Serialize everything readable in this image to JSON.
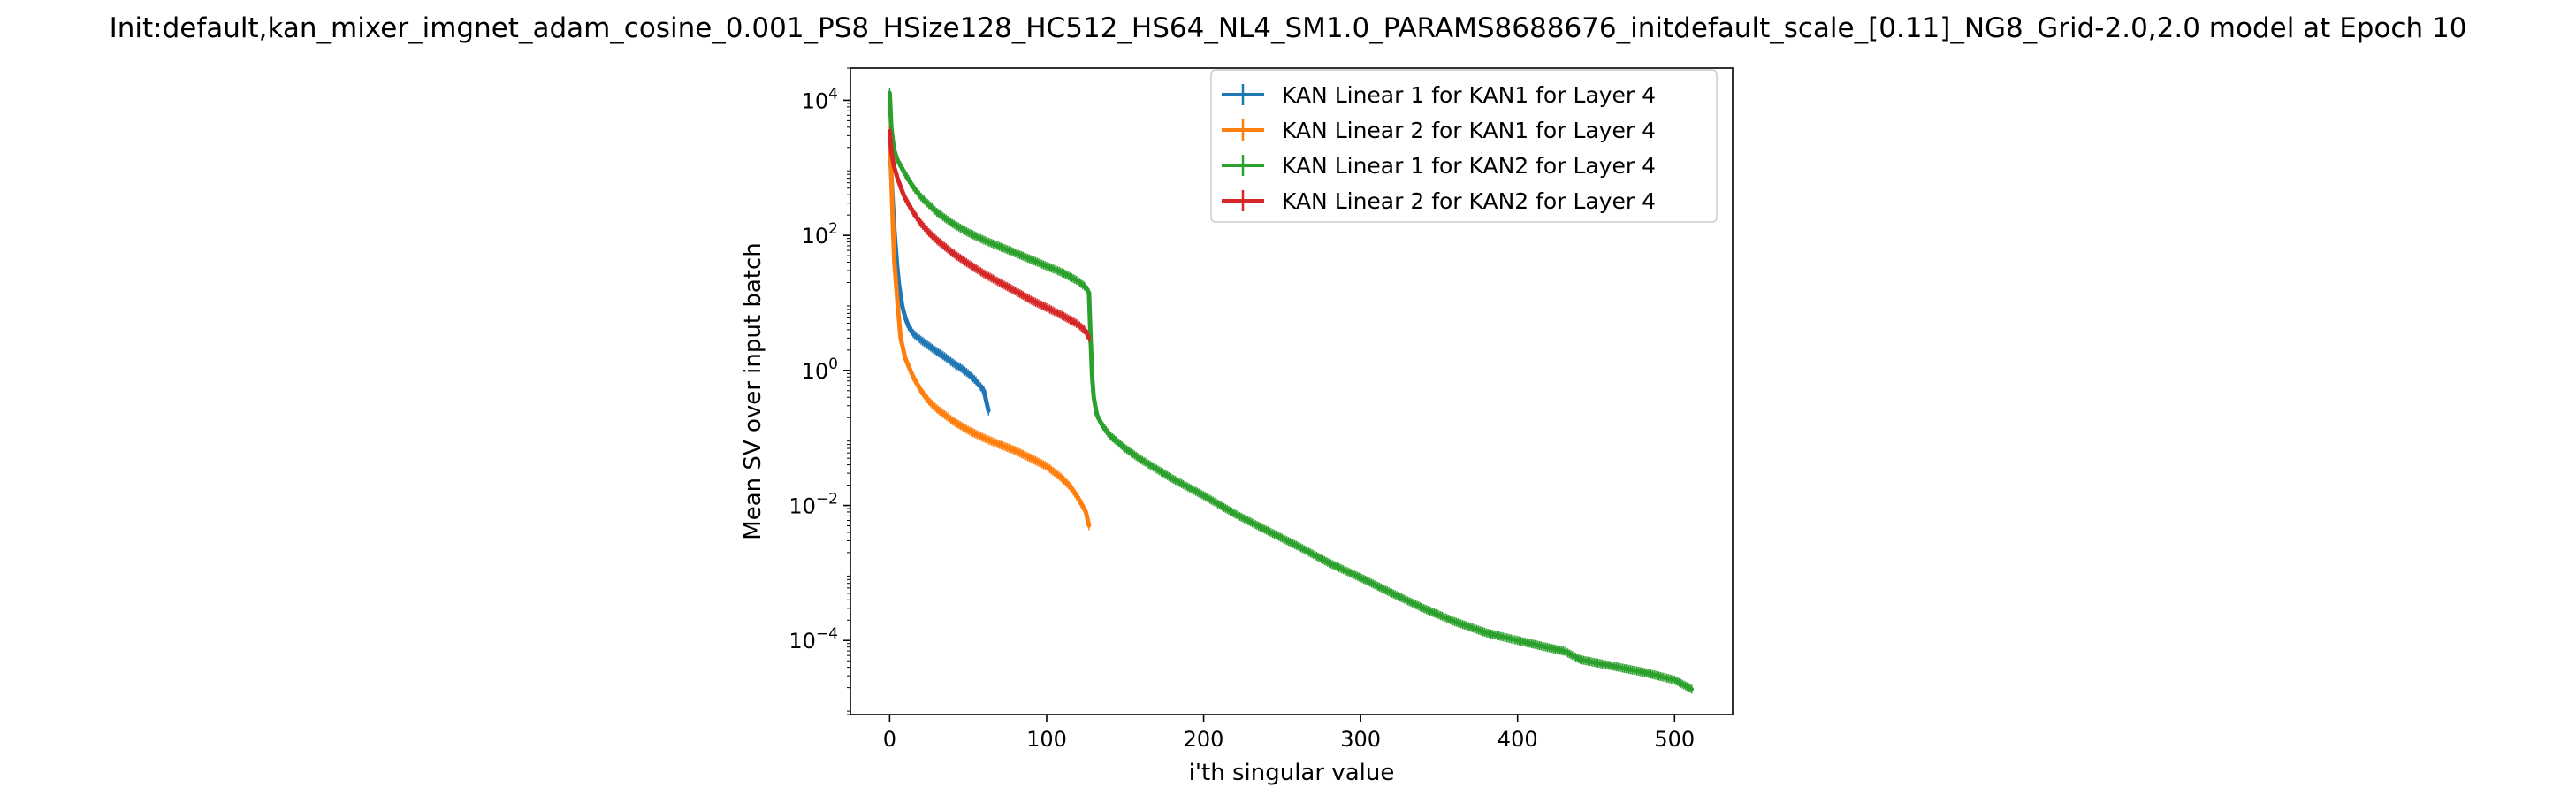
{
  "chart_data": {
    "type": "line",
    "title": "Init:default,kan_mixer_imgnet_adam_cosine_0.001_PS8_HSize128_HC512_HS64_NL4_SM1.0_PARAMS8688676_initdefault_scale_[0.11]_NG8_Grid-2.0,2.0 model at Epoch 10",
    "xlabel": "i'th singular value",
    "ylabel": "Mean SV over input batch",
    "xlim": [
      -25,
      537
    ],
    "ylim": [
      8e-06,
      30000.0
    ],
    "yscale": "log",
    "xticks": [
      0,
      100,
      200,
      300,
      400,
      500
    ],
    "yticks": [
      {
        "value": 0.0001,
        "base": "10",
        "exp": "−4"
      },
      {
        "value": 0.01,
        "base": "10",
        "exp": "−2"
      },
      {
        "value": 1,
        "base": "10",
        "exp": "0"
      },
      {
        "value": 100,
        "base": "10",
        "exp": "2"
      },
      {
        "value": 10000,
        "base": "10",
        "exp": "4"
      }
    ],
    "grid": false,
    "legend_position": "top-right",
    "error_bars": true,
    "series": [
      {
        "name": "KAN Linear 1 for KAN1 for Layer 4",
        "color": "#1f77b4",
        "x": [
          0,
          1,
          2,
          3,
          4,
          5,
          6,
          8,
          10,
          12,
          15,
          20,
          25,
          30,
          35,
          40,
          45,
          50,
          55,
          60,
          63
        ],
        "y": [
          2500,
          800,
          300,
          120,
          60,
          30,
          18,
          9,
          6,
          4.5,
          3.5,
          2.8,
          2.3,
          1.9,
          1.6,
          1.3,
          1.1,
          0.9,
          0.7,
          0.5,
          0.25
        ]
      },
      {
        "name": "KAN Linear 2 for KAN1 for Layer 4",
        "color": "#ff7f0e",
        "x": [
          0,
          1,
          2,
          3,
          5,
          7,
          10,
          15,
          20,
          25,
          30,
          40,
          50,
          60,
          70,
          80,
          90,
          100,
          110,
          115,
          120,
          125,
          127
        ],
        "y": [
          3000,
          800,
          150,
          40,
          10,
          3,
          1.5,
          0.8,
          0.5,
          0.35,
          0.27,
          0.18,
          0.13,
          0.1,
          0.08,
          0.065,
          0.05,
          0.038,
          0.025,
          0.019,
          0.013,
          0.008,
          0.005
        ]
      },
      {
        "name": "KAN Linear 1 for KAN2 for Layer 4",
        "color": "#2ca02c",
        "x": [
          0,
          1,
          2,
          3,
          5,
          10,
          15,
          20,
          30,
          40,
          50,
          60,
          80,
          100,
          110,
          120,
          125,
          127,
          128,
          129,
          130,
          132,
          135,
          140,
          150,
          160,
          180,
          200,
          220,
          240,
          260,
          280,
          300,
          320,
          340,
          360,
          380,
          400,
          420,
          430,
          440,
          460,
          480,
          500,
          511
        ],
        "y": [
          13000,
          4000,
          2500,
          1800,
          1300,
          800,
          520,
          370,
          220,
          150,
          110,
          85,
          55,
          35,
          28,
          21,
          17,
          14,
          3,
          0.8,
          0.4,
          0.22,
          0.16,
          0.11,
          0.07,
          0.048,
          0.025,
          0.014,
          0.0075,
          0.0043,
          0.0025,
          0.0014,
          0.00085,
          0.0005,
          0.0003,
          0.00019,
          0.00013,
          0.0001,
          7.8e-05,
          6.9e-05,
          5.2e-05,
          4.2e-05,
          3.4e-05,
          2.6e-05,
          1.9e-05
        ]
      },
      {
        "name": "KAN Linear 2 for KAN2 for Layer 4",
        "color": "#d62728",
        "x": [
          0,
          1,
          2,
          3,
          5,
          8,
          10,
          15,
          20,
          25,
          30,
          40,
          50,
          60,
          70,
          80,
          90,
          100,
          110,
          120,
          125,
          127
        ],
        "y": [
          3500,
          1800,
          1300,
          1000,
          700,
          450,
          350,
          220,
          150,
          110,
          85,
          55,
          38,
          27,
          20,
          15,
          11,
          8.5,
          6.5,
          4.8,
          3.8,
          3
        ]
      }
    ]
  }
}
